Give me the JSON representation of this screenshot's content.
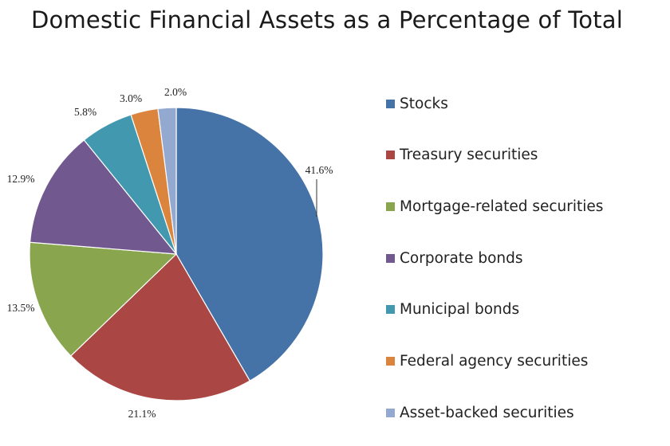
{
  "chart_data": {
    "type": "pie",
    "title": "Domestic Financial Assets as a Percentage of Total",
    "legend_position": "right",
    "slices": [
      {
        "name": "Stocks",
        "value": 41.6,
        "label": "41.6%",
        "color": "#4572a7"
      },
      {
        "name": "Treasury securities",
        "value": 21.1,
        "label": "21.1%",
        "color": "#aa4643"
      },
      {
        "name": "Mortgage-related securities",
        "value": 13.5,
        "label": "13.5%",
        "color": "#89a54e"
      },
      {
        "name": "Corporate bonds",
        "value": 12.9,
        "label": "12.9%",
        "color": "#71588f"
      },
      {
        "name": "Municipal bonds",
        "value": 5.8,
        "label": "5.8%",
        "color": "#4198af"
      },
      {
        "name": "Federal agency securities",
        "value": 3.0,
        "label": "3.0%",
        "color": "#db843d"
      },
      {
        "name": "Asset-backed securities",
        "value": 2.0,
        "label": "2.0%",
        "color": "#93a9cf"
      }
    ]
  }
}
